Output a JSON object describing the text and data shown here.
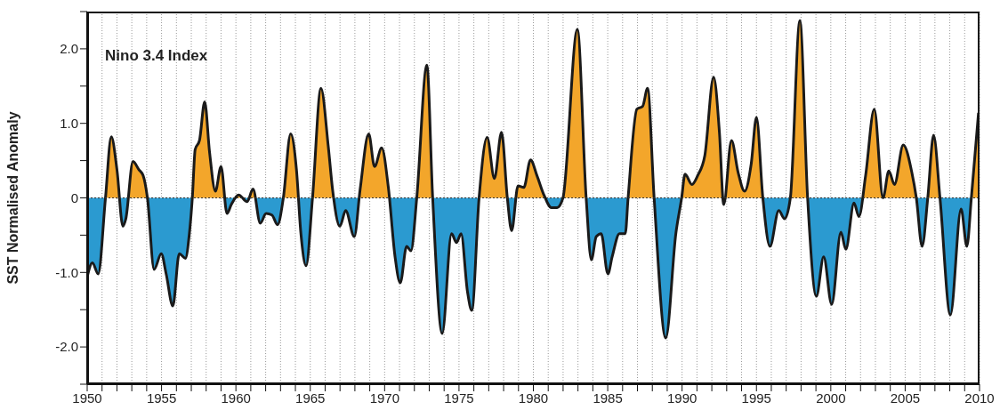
{
  "chart_data": {
    "type": "area",
    "title": "Nino 3.4 Index",
    "ylabel": "SST Normalised Anomaly",
    "xlim": [
      1950,
      2010
    ],
    "xticks": [
      {
        "value": 1950,
        "label": "1950"
      },
      {
        "value": 1951,
        "label": null
      },
      {
        "value": 1952,
        "label": null
      },
      {
        "value": 1953,
        "label": null
      },
      {
        "value": 1954,
        "label": null
      },
      {
        "value": 1955,
        "label": "1955"
      },
      {
        "value": 1956,
        "label": null
      },
      {
        "value": 1957,
        "label": null
      },
      {
        "value": 1958,
        "label": null
      },
      {
        "value": 1959,
        "label": null
      },
      {
        "value": 1960,
        "label": "1960"
      },
      {
        "value": 1961,
        "label": null
      },
      {
        "value": 1962,
        "label": null
      },
      {
        "value": 1963,
        "label": null
      },
      {
        "value": 1964,
        "label": null
      },
      {
        "value": 1965,
        "label": "1965"
      },
      {
        "value": 1966,
        "label": null
      },
      {
        "value": 1967,
        "label": null
      },
      {
        "value": 1968,
        "label": null
      },
      {
        "value": 1969,
        "label": null
      },
      {
        "value": 1970,
        "label": "1970"
      },
      {
        "value": 1971,
        "label": null
      },
      {
        "value": 1972,
        "label": null
      },
      {
        "value": 1973,
        "label": null
      },
      {
        "value": 1974,
        "label": null
      },
      {
        "value": 1975,
        "label": "1975"
      },
      {
        "value": 1976,
        "label": null
      },
      {
        "value": 1977,
        "label": null
      },
      {
        "value": 1978,
        "label": null
      },
      {
        "value": 1979,
        "label": null
      },
      {
        "value": 1980,
        "label": "1980"
      },
      {
        "value": 1981,
        "label": null
      },
      {
        "value": 1982,
        "label": null
      },
      {
        "value": 1983,
        "label": null
      },
      {
        "value": 1984,
        "label": null
      },
      {
        "value": 1985,
        "label": "1985"
      },
      {
        "value": 1986,
        "label": null
      },
      {
        "value": 1987,
        "label": null
      },
      {
        "value": 1988,
        "label": null
      },
      {
        "value": 1989,
        "label": null
      },
      {
        "value": 1990,
        "label": "1990"
      },
      {
        "value": 1991,
        "label": null
      },
      {
        "value": 1992,
        "label": null
      },
      {
        "value": 1993,
        "label": null
      },
      {
        "value": 1994,
        "label": null
      },
      {
        "value": 1995,
        "label": "1995"
      },
      {
        "value": 1996,
        "label": null
      },
      {
        "value": 1997,
        "label": null
      },
      {
        "value": 1998,
        "label": null
      },
      {
        "value": 1999,
        "label": null
      },
      {
        "value": 2000,
        "label": "2000"
      },
      {
        "value": 2001,
        "label": null
      },
      {
        "value": 2002,
        "label": null
      },
      {
        "value": 2003,
        "label": null
      },
      {
        "value": 2004,
        "label": null
      },
      {
        "value": 2005,
        "label": "2005"
      },
      {
        "value": 2006,
        "label": null
      },
      {
        "value": 2007,
        "label": null
      },
      {
        "value": 2008,
        "label": null
      },
      {
        "value": 2009,
        "label": null
      },
      {
        "value": 2010,
        "label": "2010"
      }
    ],
    "ylim": [
      -2.5,
      2.5
    ],
    "yticks": [
      {
        "value": -2.5,
        "label": null
      },
      {
        "value": -2,
        "label": "-2.0"
      },
      {
        "value": -1.5,
        "label": null
      },
      {
        "value": -1,
        "label": "-1.0"
      },
      {
        "value": -0.5,
        "label": null
      },
      0,
      {
        "value": 0.5,
        "label": null
      },
      {
        "value": 1,
        "label": "1.0"
      },
      {
        "value": 1.5,
        "label": null
      },
      {
        "value": 2,
        "label": "2.0"
      },
      {
        "value": 2.5,
        "label": null
      }
    ],
    "grid": "x",
    "ref_lines": [
      {
        "axis": "y",
        "value": 0,
        "line_style": "dotted",
        "color": "#333333"
      }
    ],
    "series": [
      {
        "color": "#1a1a1a",
        "colors": [
          "#2b9ad0",
          "#2b9ad0",
          "#2b9ad0",
          "#f3a62b",
          "#f3a62b",
          "#f3a62b",
          "#2b9ad0",
          "#2b9ad0",
          "#f3a62b",
          "#f3a62b",
          "#f3a62b",
          "#2b9ad0",
          "#2b9ad0",
          "#2b9ad0",
          "#2b9ad0",
          "#2b9ad0",
          "#2b9ad0",
          "#2b9ad0",
          "#2b9ad0",
          "#f3a62b",
          "#f3a62b",
          "#f3a62b",
          "#f3a62b",
          "#f3a62b",
          "#f3a62b",
          "#f3a62b",
          "#2b9ad0",
          "#2b9ad0",
          "#f3a62b",
          "#2b9ad0",
          "#f3a62b",
          "#2b9ad0",
          "#2b9ad0",
          "#2b9ad0",
          "#2b9ad0",
          "#f3a62b",
          "#f3a62b",
          "#f3a62b",
          "#2b9ad0",
          "#2b9ad0",
          "#f3a62b",
          "#f3a62b",
          "#f3a62b",
          "#f3a62b",
          "#2b9ad0",
          "#2b9ad0",
          "#2b9ad0",
          "#f3a62b",
          "#f3a62b",
          "#f3a62b",
          "#f3a62b",
          "#f3a62b",
          "#2b9ad0",
          "#2b9ad0",
          "#2b9ad0",
          "#2b9ad0",
          "#f3a62b",
          "#f3a62b",
          "#2b9ad0",
          "#2b9ad0",
          "#2b9ad0",
          "#2b9ad0",
          "#2b9ad0",
          "#2b9ad0",
          "#2b9ad0",
          "#f3a62b",
          "#f3a62b",
          "#f3a62b",
          "#f3a62b",
          "#2b9ad0",
          "#2b9ad0",
          "#f3a62b",
          "#f3a62b",
          "#f3a62b",
          "#f3a62b",
          "#f3a62b",
          "#2b9ad0",
          "#2b9ad0",
          "#f3a62b",
          "#f3a62b",
          "#2b9ad0",
          "#2b9ad0",
          "#2b9ad0",
          "#2b9ad0",
          "#2b9ad0",
          "#2b9ad0",
          "#2b9ad0",
          "#2b9ad0",
          "#f3a62b",
          "#f3a62b",
          "#f3a62b",
          "#f3a62b",
          "#2b9ad0",
          "#2b9ad0",
          "#2b9ad0",
          "#f3a62b",
          "#f3a62b",
          "#f3a62b",
          "#f3a62b",
          "#f3a62b",
          "#f3a62b",
          "#f3a62b",
          "#2b9ad0",
          "#f3a62b",
          "#f3a62b",
          "#f3a62b",
          "#f3a62b",
          "#f3a62b",
          "#2b9ad0",
          "#2b9ad0",
          "#2b9ad0",
          "#2b9ad0",
          "#f3a62b",
          "#f3a62b",
          "#2b9ad0",
          "#2b9ad0",
          "#2b9ad0",
          "#2b9ad0",
          "#2b9ad0",
          "#2b9ad0",
          "#2b9ad0",
          "#2b9ad0",
          "#f3a62b",
          "#f3a62b",
          "#f3a62b",
          "#f3a62b",
          "#f3a62b",
          "#f3a62b",
          "#f3a62b",
          "#2b9ad0",
          "#2b9ad0",
          "#f3a62b",
          "#f3a62b",
          "#2b9ad0",
          "#2b9ad0",
          "#2b9ad0",
          "#2b9ad0",
          "#f3a62b",
          "#f3a62b"
        ],
        "x": [
          1950.0,
          1950.35,
          1950.74,
          1951.23,
          1951.62,
          1952.0,
          1952.4,
          1952.6,
          1953.08,
          1953.47,
          1953.76,
          1954.05,
          1954.5,
          1954.98,
          1955.31,
          1955.76,
          1956.19,
          1956.6,
          1956.87,
          1957.07,
          1957.26,
          1957.55,
          1957.9,
          1958.23,
          1958.62,
          1959.0,
          1959.4,
          1959.69,
          1960.18,
          1960.76,
          1961.15,
          1961.64,
          1962.03,
          1962.42,
          1962.8,
          1963.19,
          1963.68,
          1964.07,
          1964.37,
          1964.72,
          1965.15,
          1965.72,
          1966.21,
          1966.5,
          1966.99,
          1967.38,
          1967.96,
          1968.35,
          1968.93,
          1969.32,
          1969.8,
          1970.25,
          1970.7,
          1971.05,
          1971.48,
          1971.77,
          1972.16,
          1972.84,
          1973.23,
          1973.87,
          1974.5,
          1974.83,
          1975.14,
          1975.57,
          1975.86,
          1976.35,
          1976.89,
          1977.38,
          1977.86,
          1978.25,
          1978.54,
          1978.97,
          1979.36,
          1979.81,
          1980.24,
          1980.73,
          1981.21,
          1981.6,
          1981.99,
          1982.96,
          1983.55,
          1983.9,
          1984.23,
          1984.56,
          1985.01,
          1985.3,
          1985.79,
          1986.18,
          1986.37,
          1986.96,
          1987.35,
          1987.68,
          1988.12,
          1988.9,
          1989.58,
          1989.97,
          1990.2,
          1990.66,
          1991.05,
          1991.53,
          1992.12,
          1992.51,
          1992.8,
          1993.32,
          1993.77,
          1994.2,
          1994.65,
          1995.0,
          1995.43,
          1995.91,
          1996.5,
          1996.89,
          1997.28,
          1997.92,
          1998.44,
          1999.03,
          1999.52,
          2000.06,
          2000.68,
          2001.01,
          2001.56,
          2001.89,
          2002.34,
          2002.92,
          2003.51,
          2003.9,
          2004.28,
          2004.87,
          2005.45,
          2005.75,
          2006.14,
          2006.52,
          2006.91,
          2007.34,
          2008.04,
          2008.76,
          2009.15,
          2009.45,
          2009.93
        ],
        "values": [
          -1.06,
          -0.87,
          -1.02,
          0,
          0.82,
          0.38,
          -0.38,
          -0.28,
          0.49,
          0.38,
          0.3,
          0,
          -0.96,
          -0.75,
          -1.02,
          -1.45,
          -0.75,
          -0.81,
          -0.48,
          0,
          0.65,
          0.77,
          1.29,
          0.61,
          0.09,
          0.42,
          -0.21,
          -0.09,
          0.04,
          -0.05,
          0.12,
          -0.34,
          -0.21,
          -0.23,
          -0.36,
          0,
          0.86,
          0.38,
          -0.48,
          -0.91,
          0,
          1.47,
          0.69,
          0.11,
          -0.38,
          -0.17,
          -0.52,
          0.11,
          0.86,
          0.42,
          0.67,
          0.14,
          -0.79,
          -1.14,
          -0.65,
          -0.71,
          0,
          1.78,
          0,
          -1.82,
          -0.48,
          -0.6,
          -0.48,
          -1.26,
          -1.51,
          0,
          0.81,
          0.26,
          0.88,
          0,
          -0.44,
          0.16,
          0.14,
          0.51,
          0.3,
          0.03,
          -0.13,
          -0.13,
          0,
          2.26,
          0,
          -0.83,
          -0.52,
          -0.48,
          -1.02,
          -0.79,
          -0.48,
          -0.48,
          0,
          1.19,
          1.23,
          1.47,
          0,
          -1.88,
          -0.48,
          0,
          0.32,
          0.18,
          0.3,
          0.57,
          1.62,
          0.88,
          -0.09,
          0.77,
          0.34,
          0.09,
          0.46,
          1.08,
          0,
          -0.65,
          -0.17,
          -0.28,
          0,
          2.38,
          0,
          -1.32,
          -0.79,
          -1.43,
          -0.46,
          -0.69,
          -0.07,
          -0.25,
          0.3,
          1.19,
          0,
          0.36,
          0.18,
          0.71,
          0.34,
          0,
          -0.65,
          0,
          0.84,
          0,
          -1.57,
          -0.15,
          -0.65,
          0,
          1.14
        ]
      }
    ]
  }
}
